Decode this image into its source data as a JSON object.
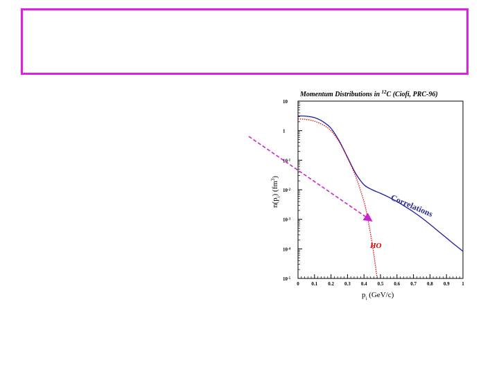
{
  "slide": {
    "frame_color": "#e020e0"
  },
  "chart_data": {
    "type": "line",
    "title": "Momentum Distributions in ",
    "title_superscript": "12",
    "title_suffix": "C (Ciofi, PRC-96)",
    "xlabel": "p",
    "xlabel_sub": "i",
    "xlabel_unit": " (GeV/c)",
    "ylabel": "n(p",
    "ylabel_sub": "i",
    "ylabel_unit": ") (fm",
    "ylabel_sup": "3",
    "ylabel_end": ")",
    "xlim": [
      0,
      1
    ],
    "ylim_log10": [
      -5,
      1
    ],
    "y_scale": "log",
    "x_ticks": [
      "0",
      "0.1",
      "0.2",
      "0.3",
      "0.4",
      "0.5",
      "0.6",
      "0.7",
      "0.8",
      "0.9",
      "1"
    ],
    "y_ticks": [
      {
        "base": "10",
        "exp": "",
        "value": 1
      },
      {
        "base": "1",
        "exp": "",
        "value": 0
      },
      {
        "base": "10",
        "exp": "-1",
        "value": -1
      },
      {
        "base": "10",
        "exp": "-2",
        "value": -2
      },
      {
        "base": "10",
        "exp": "-3",
        "value": -3
      },
      {
        "base": "10",
        "exp": "-4",
        "value": -4
      },
      {
        "base": "10",
        "exp": "-5",
        "value": -5
      }
    ],
    "series": [
      {
        "name": "Correlations",
        "color": "#1a1aa6",
        "style": "solid",
        "x": [
          0,
          0.05,
          0.1,
          0.15,
          0.2,
          0.25,
          0.3,
          0.35,
          0.4,
          0.45,
          0.5,
          0.55,
          0.6,
          0.65,
          0.7,
          0.75,
          0.8,
          0.85,
          0.9,
          0.95,
          1.0
        ],
        "y_log10": [
          0.5,
          0.49,
          0.44,
          0.31,
          0.08,
          -0.35,
          -0.9,
          -1.45,
          -1.83,
          -2.0,
          -2.12,
          -2.25,
          -2.4,
          -2.57,
          -2.75,
          -2.95,
          -3.17,
          -3.4,
          -3.63,
          -3.86,
          -4.08
        ]
      },
      {
        "name": "HO",
        "color": "#dd0000",
        "style": "dotted",
        "x": [
          0,
          0.05,
          0.1,
          0.15,
          0.2,
          0.25,
          0.3,
          0.35,
          0.4,
          0.42,
          0.44,
          0.46,
          0.48
        ],
        "y_log10": [
          0.4,
          0.38,
          0.32,
          0.2,
          0.0,
          -0.38,
          -0.92,
          -1.55,
          -2.4,
          -2.9,
          -3.5,
          -4.2,
          -5.0
        ]
      }
    ],
    "annotations": [
      {
        "text": "Correlations",
        "color": "#2b2b8f"
      },
      {
        "text": "HO",
        "color": "#dd0000"
      }
    ],
    "arrow_color": "#cc22cc"
  }
}
